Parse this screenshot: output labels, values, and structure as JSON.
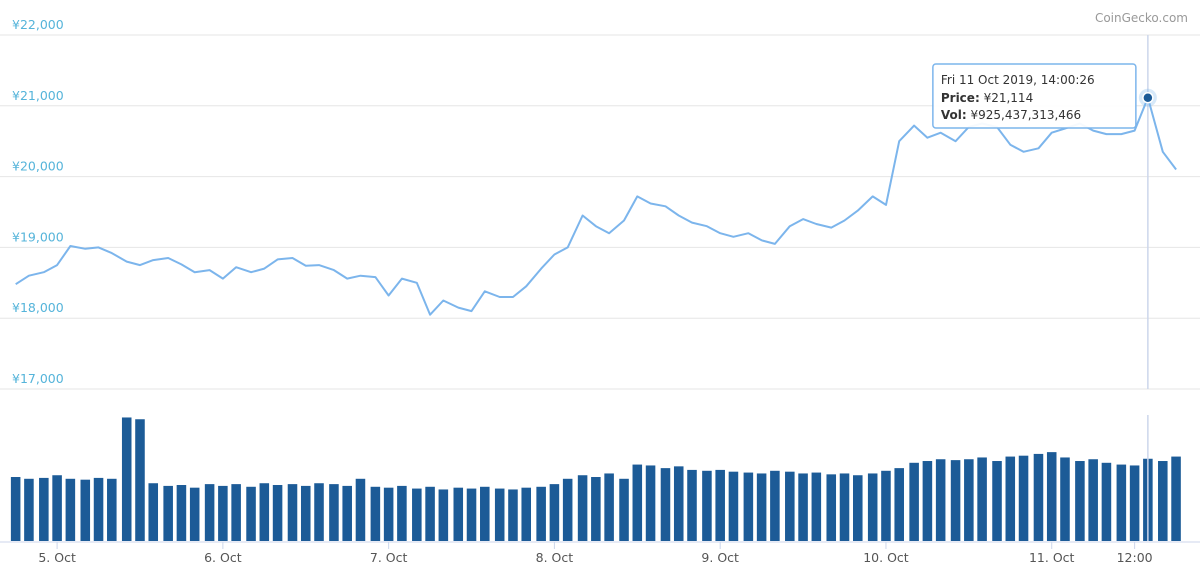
{
  "credits": "CoinGecko.com",
  "chart_data": [
    {
      "type": "line",
      "color": "#7cb5ec",
      "x": [
        4.75,
        4.83,
        4.92,
        5,
        5.08,
        5.17,
        5.25,
        5.33,
        5.42,
        5.5,
        5.58,
        5.67,
        5.75,
        5.83,
        5.92,
        6,
        6.08,
        6.17,
        6.25,
        6.33,
        6.42,
        6.5,
        6.58,
        6.67,
        6.75,
        6.83,
        6.92,
        7,
        7.08,
        7.17,
        7.25,
        7.33,
        7.42,
        7.5,
        7.58,
        7.67,
        7.75,
        7.83,
        7.92,
        8,
        8.08,
        8.17,
        8.25,
        8.33,
        8.42,
        8.5,
        8.58,
        8.67,
        8.75,
        8.83,
        8.92,
        9,
        9.08,
        9.17,
        9.25,
        9.33,
        9.42,
        9.5,
        9.58,
        9.67,
        9.75,
        9.83,
        9.92,
        10,
        10.08,
        10.17,
        10.25,
        10.33,
        10.42,
        10.5,
        10.58,
        10.67,
        10.75,
        10.83,
        10.92,
        11,
        11.08,
        11.17,
        11.25,
        11.33,
        11.42,
        11.5,
        11.58,
        11.67,
        11.75
      ],
      "values": [
        18480,
        18600,
        18650,
        18750,
        19020,
        18980,
        19000,
        18920,
        18800,
        18750,
        18820,
        18850,
        18760,
        18650,
        18680,
        18560,
        18720,
        18650,
        18700,
        18830,
        18850,
        18740,
        18750,
        18680,
        18560,
        18600,
        18580,
        18320,
        18560,
        18500,
        18050,
        18250,
        18150,
        18100,
        18380,
        18300,
        18300,
        18450,
        18700,
        18900,
        19000,
        19450,
        19300,
        19200,
        19380,
        19720,
        19620,
        19580,
        19450,
        19350,
        19300,
        19200,
        19150,
        19200,
        19100,
        19050,
        19300,
        19400,
        19330,
        19280,
        19380,
        19520,
        19720,
        19600,
        20500,
        20720,
        20550,
        20620,
        20500,
        20700,
        20750,
        20700,
        20450,
        20350,
        20400,
        20620,
        20680,
        20750,
        20650,
        20600,
        20600,
        20650,
        21114,
        20350,
        20100
      ],
      "xlim": [
        4.74,
        11.81
      ],
      "ylim": [
        17000,
        22000
      ],
      "yticks": [
        {
          "value": 17000,
          "label": "¥17,000"
        },
        {
          "value": 18000,
          "label": "¥18,000"
        },
        {
          "value": 19000,
          "label": "¥19,000"
        },
        {
          "value": 20000,
          "label": "¥20,000"
        },
        {
          "value": 21000,
          "label": "¥21,000"
        },
        {
          "value": 22000,
          "label": "¥22,000"
        }
      ],
      "grid": true,
      "tooltip": {
        "title": "Fri 11 Oct 2019, 14:00:26",
        "lines": [
          {
            "label": "Price:",
            "value": "¥21,114"
          },
          {
            "label": "Vol:",
            "value": "¥925,437,313,466"
          }
        ]
      }
    },
    {
      "type": "bar",
      "color": "#1c5b97",
      "x": [
        4.75,
        4.83,
        4.92,
        5,
        5.08,
        5.17,
        5.25,
        5.33,
        5.42,
        5.5,
        5.58,
        5.67,
        5.75,
        5.83,
        5.92,
        6,
        6.08,
        6.17,
        6.25,
        6.33,
        6.42,
        6.5,
        6.58,
        6.67,
        6.75,
        6.83,
        6.92,
        7,
        7.08,
        7.17,
        7.25,
        7.33,
        7.42,
        7.5,
        7.58,
        7.67,
        7.75,
        7.83,
        7.92,
        8,
        8.08,
        8.17,
        8.25,
        8.33,
        8.42,
        8.5,
        8.58,
        8.67,
        8.75,
        8.83,
        8.92,
        9,
        9.08,
        9.17,
        9.25,
        9.33,
        9.42,
        9.5,
        9.58,
        9.67,
        9.75,
        9.83,
        9.92,
        10,
        10.08,
        10.17,
        10.25,
        10.33,
        10.42,
        10.5,
        10.58,
        10.67,
        10.75,
        10.83,
        10.92,
        11,
        11.08,
        11.17,
        11.25,
        11.33,
        11.42,
        11.5,
        11.58,
        11.67,
        11.75
      ],
      "values": [
        720000000000,
        700000000000,
        710000000000,
        740000000000,
        700000000000,
        690000000000,
        710000000000,
        700000000000,
        1390000000000,
        1370000000000,
        650000000000,
        620000000000,
        630000000000,
        600000000000,
        640000000000,
        620000000000,
        640000000000,
        610000000000,
        650000000000,
        630000000000,
        640000000000,
        620000000000,
        650000000000,
        640000000000,
        620000000000,
        700000000000,
        610000000000,
        600000000000,
        620000000000,
        590000000000,
        610000000000,
        580000000000,
        600000000000,
        590000000000,
        610000000000,
        590000000000,
        580000000000,
        600000000000,
        610000000000,
        640000000000,
        700000000000,
        740000000000,
        720000000000,
        760000000000,
        700000000000,
        860000000000,
        850000000000,
        820000000000,
        840000000000,
        800000000000,
        790000000000,
        800000000000,
        780000000000,
        770000000000,
        760000000000,
        790000000000,
        780000000000,
        760000000000,
        770000000000,
        750000000000,
        760000000000,
        740000000000,
        760000000000,
        790000000000,
        820000000000,
        880000000000,
        900000000000,
        920000000000,
        910000000000,
        920000000000,
        940000000000,
        900000000000,
        950000000000,
        960000000000,
        980000000000,
        1000000000000,
        940000000000,
        900000000000,
        920000000000,
        880000000000,
        860000000000,
        850000000000,
        925437313466,
        900000000000,
        950000000000
      ],
      "xlim": [
        4.74,
        11.81
      ],
      "xticks": [
        {
          "value": 5,
          "label": "5. Oct"
        },
        {
          "value": 6,
          "label": "6. Oct"
        },
        {
          "value": 7,
          "label": "7. Oct"
        },
        {
          "value": 8,
          "label": "8. Oct"
        },
        {
          "value": 9,
          "label": "9. Oct"
        },
        {
          "value": 10,
          "label": "10. Oct"
        },
        {
          "value": 11,
          "label": "11. Oct"
        },
        {
          "value": 11.5,
          "label": "12:00"
        }
      ]
    }
  ]
}
